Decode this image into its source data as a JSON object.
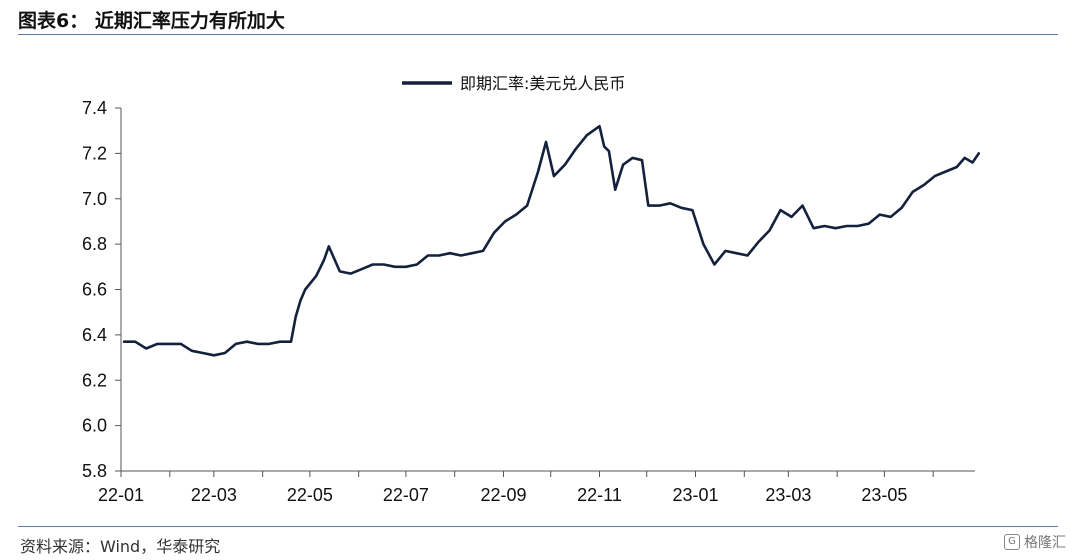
{
  "header": {
    "title": "图表6：  近期汇率压力有所加大"
  },
  "footer": {
    "source": "资料来源：Wind，华泰研究",
    "watermark": "格隆汇"
  },
  "colors": {
    "series": "#14213d",
    "rule": "#5b7fa6",
    "axis": "#555555"
  },
  "chart_data": {
    "type": "line",
    "title": "",
    "xlabel": "",
    "ylabel": "",
    "ylim": [
      5.8,
      7.4
    ],
    "yticks": [
      "5.8",
      "6.0",
      "6.2",
      "6.4",
      "6.6",
      "6.8",
      "7.0",
      "7.2",
      "7.4"
    ],
    "xticks": [
      "22-01",
      "22-03",
      "22-05",
      "22-07",
      "22-09",
      "22-11",
      "23-01",
      "23-03",
      "23-05"
    ],
    "legend_position": "top-center",
    "grid": false,
    "series": [
      {
        "name": "即期汇率:美元兑人民币",
        "x": [
          "2022-01-03",
          "2022-01-10",
          "2022-01-17",
          "2022-01-24",
          "2022-02-01",
          "2022-02-08",
          "2022-02-15",
          "2022-02-22",
          "2022-03-01",
          "2022-03-08",
          "2022-03-15",
          "2022-03-22",
          "2022-03-29",
          "2022-04-05",
          "2022-04-12",
          "2022-04-19",
          "2022-04-22",
          "2022-04-25",
          "2022-04-28",
          "2022-05-05",
          "2022-05-10",
          "2022-05-13",
          "2022-05-20",
          "2022-05-27",
          "2022-06-03",
          "2022-06-10",
          "2022-06-17",
          "2022-06-24",
          "2022-07-01",
          "2022-07-08",
          "2022-07-15",
          "2022-07-22",
          "2022-07-29",
          "2022-08-05",
          "2022-08-12",
          "2022-08-19",
          "2022-08-26",
          "2022-09-02",
          "2022-09-09",
          "2022-09-16",
          "2022-09-23",
          "2022-09-28",
          "2022-10-03",
          "2022-10-10",
          "2022-10-17",
          "2022-10-24",
          "2022-10-28",
          "2022-11-01",
          "2022-11-04",
          "2022-11-07",
          "2022-11-11",
          "2022-11-16",
          "2022-11-22",
          "2022-11-28",
          "2022-12-02",
          "2022-12-09",
          "2022-12-16",
          "2022-12-23",
          "2022-12-30",
          "2023-01-06",
          "2023-01-13",
          "2023-01-20",
          "2023-01-27",
          "2023-02-03",
          "2023-02-10",
          "2023-02-17",
          "2023-02-24",
          "2023-03-03",
          "2023-03-10",
          "2023-03-17",
          "2023-03-24",
          "2023-03-31",
          "2023-04-07",
          "2023-04-14",
          "2023-04-21",
          "2023-04-28",
          "2023-05-05",
          "2023-05-12",
          "2023-05-19",
          "2023-05-26",
          "2023-06-02",
          "2023-06-09",
          "2023-06-16",
          "2023-06-21",
          "2023-06-26",
          "2023-06-30"
        ],
        "values": [
          6.37,
          6.37,
          6.34,
          6.36,
          6.36,
          6.36,
          6.33,
          6.32,
          6.31,
          6.32,
          6.36,
          6.37,
          6.36,
          6.36,
          6.37,
          6.37,
          6.48,
          6.55,
          6.6,
          6.66,
          6.73,
          6.79,
          6.68,
          6.67,
          6.69,
          6.71,
          6.71,
          6.7,
          6.7,
          6.71,
          6.75,
          6.75,
          6.76,
          6.75,
          6.76,
          6.77,
          6.85,
          6.9,
          6.93,
          6.97,
          7.12,
          7.25,
          7.1,
          7.15,
          7.22,
          7.28,
          7.3,
          7.32,
          7.23,
          7.21,
          7.04,
          7.15,
          7.18,
          7.17,
          6.97,
          6.97,
          6.98,
          6.96,
          6.95,
          6.8,
          6.71,
          6.77,
          6.76,
          6.75,
          6.81,
          6.86,
          6.95,
          6.92,
          6.97,
          6.87,
          6.88,
          6.87,
          6.88,
          6.88,
          6.89,
          6.93,
          6.92,
          6.96,
          7.03,
          7.06,
          7.1,
          7.12,
          7.14,
          7.18,
          7.16,
          7.2
        ]
      }
    ]
  }
}
